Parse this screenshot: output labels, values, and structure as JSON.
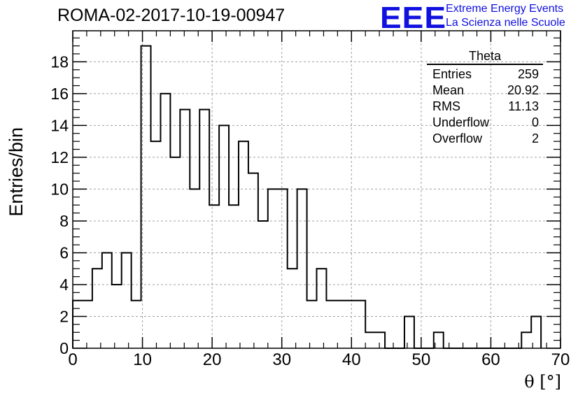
{
  "chart_data": {
    "type": "histogram",
    "title": "ROMA-02-2017-10-19-00947",
    "xlabel": "θ [°]",
    "ylabel": "Entries/bin",
    "xlim": [
      0,
      70
    ],
    "ylim": [
      0,
      19.95
    ],
    "grid": true,
    "bin_width": 1.4,
    "bin_start": 0,
    "counts": [
      3,
      3,
      5,
      6,
      4,
      6,
      3,
      19,
      13,
      16,
      12,
      15,
      10,
      15,
      9,
      14,
      9,
      13,
      11,
      8,
      10,
      10,
      5,
      10,
      3,
      5,
      3,
      3,
      3,
      3,
      1,
      1,
      0,
      0,
      2,
      0,
      0,
      1,
      0,
      0,
      0,
      0,
      0,
      0,
      0,
      0,
      1,
      2
    ],
    "x_ticks": [
      "0",
      "10",
      "20",
      "30",
      "40",
      "50",
      "60",
      "70"
    ],
    "y_ticks": [
      "0",
      "2",
      "4",
      "6",
      "8",
      "10",
      "12",
      "14",
      "16",
      "18"
    ],
    "stats": {
      "name": "Theta",
      "rows": [
        {
          "label": "Entries",
          "value": "259"
        },
        {
          "label": "Mean",
          "value": "20.92"
        },
        {
          "label": "RMS",
          "value": "11.13"
        },
        {
          "label": "Underflow",
          "value": "0"
        },
        {
          "label": "Overflow",
          "value": "2"
        }
      ]
    }
  },
  "logo": {
    "mark": "EEE",
    "line1": "Extreme Energy Events",
    "line2": "La Scienza nelle Scuole"
  },
  "colors": {
    "logo": "#1010e0",
    "line": "#000000",
    "grid": "#a0a0a0"
  }
}
